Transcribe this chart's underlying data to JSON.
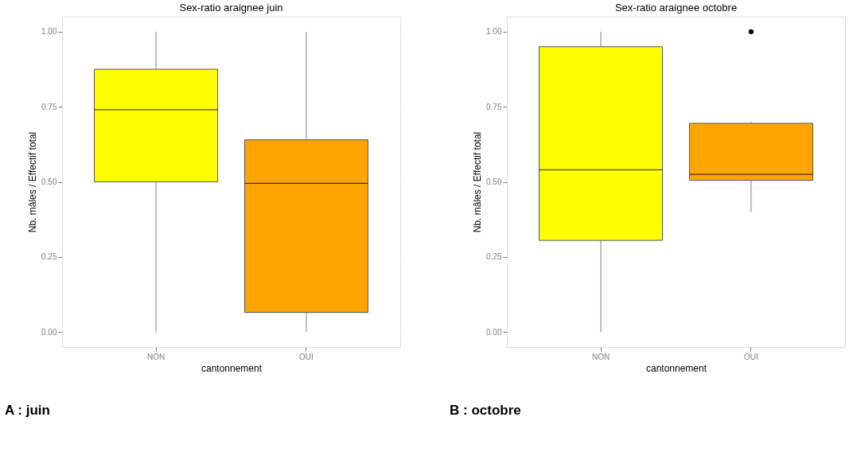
{
  "chart_data": [
    {
      "type": "box",
      "title": "Sex-ratio araignee juin",
      "xlabel": "cantonnement",
      "ylabel": "Nb. mâles / Effectif total",
      "categories": [
        "NON",
        "OUI"
      ],
      "colors": [
        "#ffff00",
        "#ffa500"
      ],
      "boxes": [
        {
          "low": 0,
          "q1": 0.5,
          "median": 0.74,
          "q3": 0.875,
          "high": 1.0
        },
        {
          "low": 0,
          "q1": 0.065,
          "median": 0.495,
          "q3": 0.64,
          "high": 1.0
        }
      ],
      "ylim": [
        -0.05,
        1.05
      ],
      "yticks": [
        {
          "value": 0,
          "label": "0.00"
        },
        {
          "value": 0.25,
          "label": "0.25"
        },
        {
          "value": 0.5,
          "label": "0.50"
        },
        {
          "value": 0.75,
          "label": "0.75"
        },
        {
          "value": 1,
          "label": "1.00"
        }
      ],
      "grid": true,
      "annotations": [
        "A : juin"
      ]
    },
    {
      "type": "box",
      "title": "Sex-ratio araignee octobre",
      "xlabel": "cantonnement",
      "ylabel": "Nb. mâles / Effectif total",
      "categories": [
        "NON",
        "OUI"
      ],
      "colors": [
        "#ffff00",
        "#ffa500"
      ],
      "boxes": [
        {
          "low": 0,
          "q1": 0.305,
          "median": 0.54,
          "q3": 0.95,
          "high": 1.0
        },
        {
          "low": 0.4,
          "q1": 0.505,
          "median": 0.525,
          "q3": 0.695,
          "high": 0.7,
          "outliers": [
            1.0
          ]
        }
      ],
      "ylim": [
        -0.05,
        1.05
      ],
      "yticks": [
        {
          "value": 0,
          "label": "0.00"
        },
        {
          "value": 0.25,
          "label": "0.25"
        },
        {
          "value": 0.5,
          "label": "0.50"
        },
        {
          "value": 0.75,
          "label": "0.75"
        },
        {
          "value": 1,
          "label": "1.00"
        }
      ],
      "grid": true,
      "annotations": [
        "B : octobre"
      ]
    }
  ]
}
